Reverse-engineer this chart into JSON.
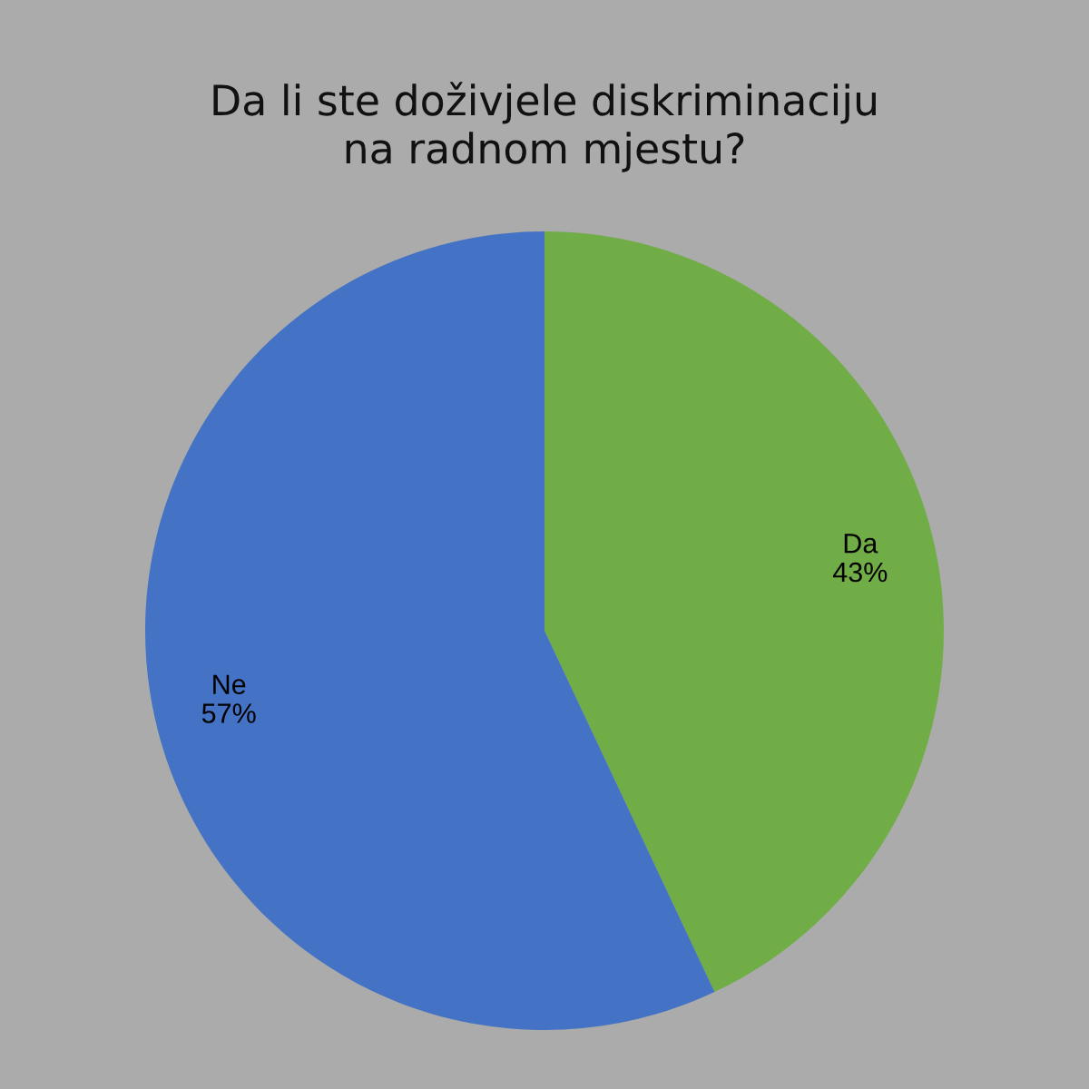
{
  "chart_data": {
    "type": "pie",
    "title": "Da li ste doživjele diskriminaciju\nna radnom mjestu?",
    "categories": [
      "Da",
      "Ne"
    ],
    "values": [
      43,
      57
    ],
    "colors": [
      "#70ad47",
      "#4472c4"
    ],
    "value_labels": [
      "43%",
      "57%"
    ]
  }
}
